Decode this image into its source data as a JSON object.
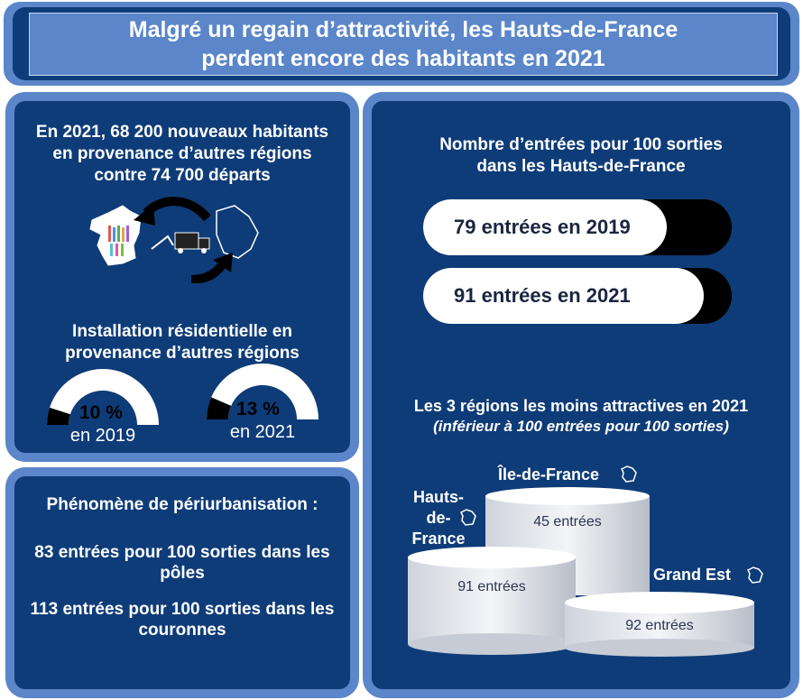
{
  "title": {
    "line1": "Malgré un regain d’attractivité, les Hauts-de-France",
    "line2": "perdent encore des habitants en 2021"
  },
  "left_top": {
    "headline_line1": "En 2021, 68 200 nouveaux habitants",
    "headline_line2": "en provenance d’autres régions",
    "headline_line3": "contre 74 700 départs",
    "installation_line1": "Installation résidentielle en",
    "installation_line2": "provenance d’autres régions",
    "gauges": [
      {
        "value_label": "10 %",
        "year_label": "en 2019",
        "percent": 10
      },
      {
        "value_label": "13 %",
        "year_label": "en 2021",
        "percent": 13
      }
    ]
  },
  "left_bottom": {
    "heading": "Phénomène de périurbanisation :",
    "poles_line1": "83 entrées pour 100 sorties dans les",
    "poles_line2": "pôles",
    "couronnes_line1": "113 entrées pour 100 sorties dans les",
    "couronnes_line2": "couronnes"
  },
  "right": {
    "bars_title_line1": "Nombre d’entrées pour 100 sorties",
    "bars_title_line2": "dans les Hauts-de-France",
    "bars": [
      {
        "label": "79 entrées en 2019",
        "value": 79
      },
      {
        "label": "91 entrées en 2021",
        "value": 91
      }
    ],
    "podium_title": "Les 3 régions les moins attractives en 2021",
    "podium_subtitle": "(inférieur à 100 entrées pour 100 sorties)",
    "podium": [
      {
        "region_line1": "Hauts-",
        "region_line2": "de-",
        "region_line3": "France",
        "value_label": "91 entrées"
      },
      {
        "region": "Île-de-France",
        "value_label": "45 entrées"
      },
      {
        "region": "Grand Est",
        "value_label": "92 entrées"
      }
    ]
  },
  "colors": {
    "navy": "#0e3c78",
    "frame_blue": "#5b86c9",
    "white": "#ffffff",
    "black": "#000000"
  }
}
